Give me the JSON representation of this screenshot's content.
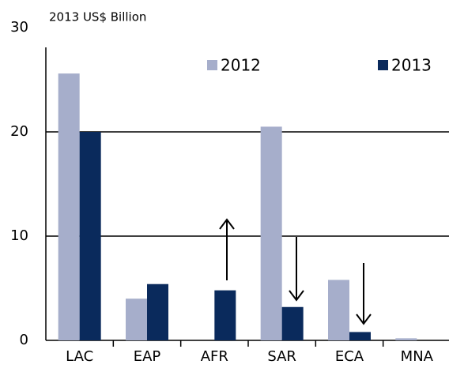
{
  "chart_data": {
    "type": "bar",
    "subtitle": "2013 US$ Billion",
    "categories": [
      "LAC",
      "EAP",
      "AFR",
      "SAR",
      "ECA",
      "MNA"
    ],
    "series": [
      {
        "name": "2012",
        "color": "#a6aecb",
        "values": [
          25.6,
          4.0,
          0,
          20.5,
          5.8,
          0.2
        ]
      },
      {
        "name": "2013",
        "color": "#0a2a5c",
        "values": [
          20.0,
          5.4,
          4.8,
          3.2,
          0.8,
          0
        ]
      }
    ],
    "ylim": [
      0,
      30
    ],
    "yticks": [
      0,
      10,
      20,
      30
    ],
    "grid": true,
    "legend": "top"
  }
}
